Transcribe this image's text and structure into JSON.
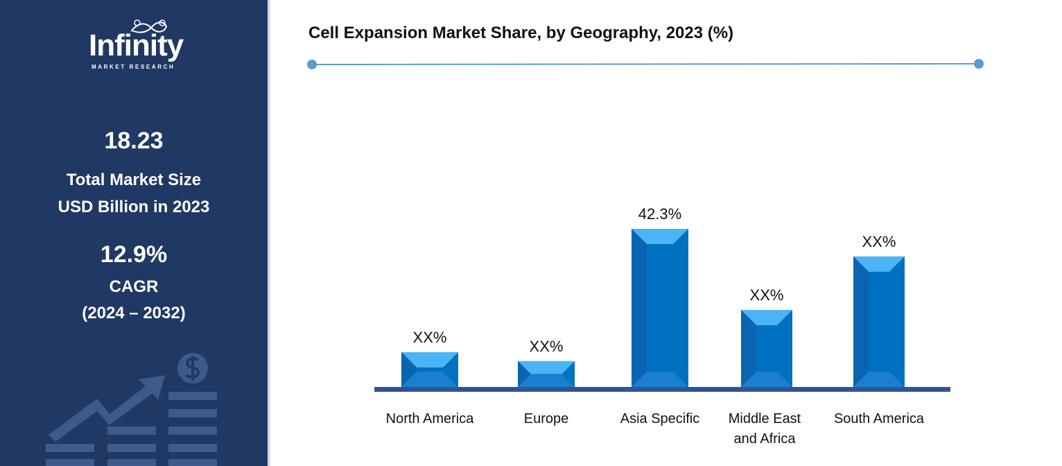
{
  "brand": {
    "name": "Infinity",
    "tagline": "MARKET RESEARCH"
  },
  "sidebar": {
    "market_size_value": "18.23",
    "market_size_label_1": "Total Market Size",
    "market_size_label_2": "USD Billion in 2023",
    "cagr_value": "12.9%",
    "cagr_label": "CAGR",
    "cagr_period": "(2024 – 2032)"
  },
  "colors": {
    "panel": "#203864",
    "bar": "#0070c0",
    "bar_light": "#4ab4f5",
    "axis": "#2f5597",
    "accent_line": "#5b9bd5"
  },
  "chart_data": {
    "type": "bar",
    "title": "Cell Expansion Market Share, by Geography, 2023 (%)",
    "categories": [
      "North America",
      "Europe",
      "Asia Specific",
      "Middle East and Africa",
      "South America"
    ],
    "category_lines": [
      [
        "North America"
      ],
      [
        "Europe"
      ],
      [
        "Asia Specific"
      ],
      [
        "Middle East",
        "and Africa"
      ],
      [
        "South America"
      ]
    ],
    "values": [
      9.3,
      6.9,
      42.3,
      20.6,
      34.9
    ],
    "data_labels": [
      "XX%",
      "XX%",
      "42.3%",
      "XX%",
      "XX%"
    ],
    "ylim": [
      0,
      50
    ],
    "grid": false,
    "legend": "none"
  }
}
